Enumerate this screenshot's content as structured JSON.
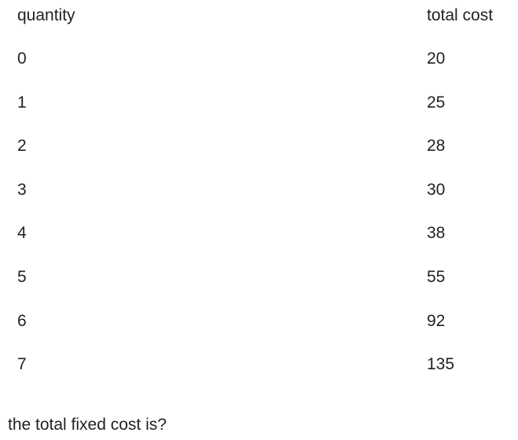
{
  "table": {
    "headers": {
      "quantity": "quantity",
      "total_cost": "total cost"
    },
    "rows": [
      {
        "quantity": "0",
        "total_cost": "20"
      },
      {
        "quantity": "1",
        "total_cost": "25"
      },
      {
        "quantity": "2",
        "total_cost": "28"
      },
      {
        "quantity": "3",
        "total_cost": "30"
      },
      {
        "quantity": "4",
        "total_cost": "38"
      },
      {
        "quantity": "5",
        "total_cost": "55"
      },
      {
        "quantity": "6",
        "total_cost": "92"
      },
      {
        "quantity": "7",
        "total_cost": "135"
      }
    ]
  },
  "question": "the total fixed cost is?"
}
